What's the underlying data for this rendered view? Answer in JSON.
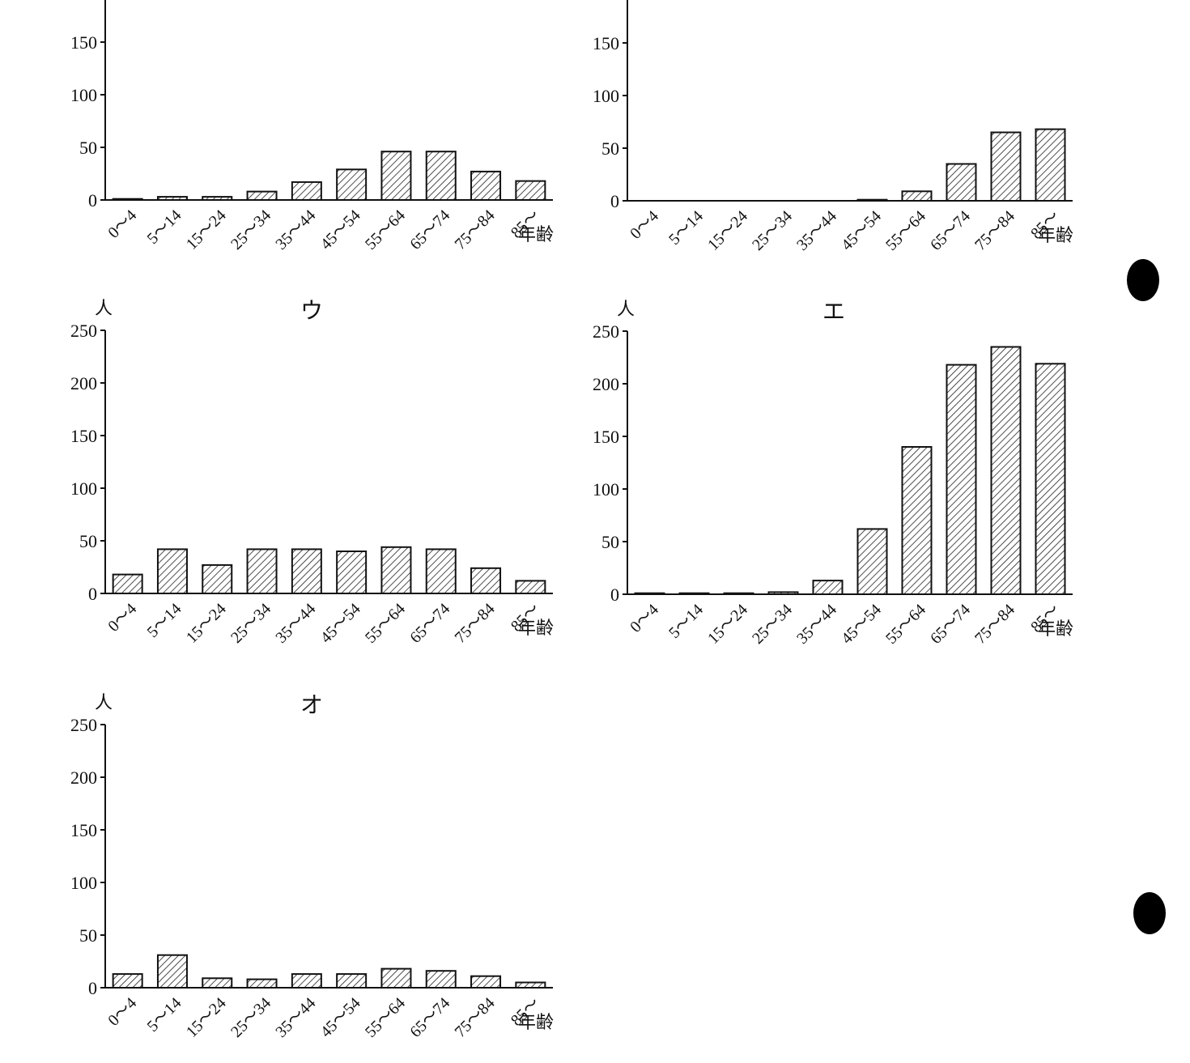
{
  "chart_data": [
    {
      "type": "bar",
      "xlabel": "年齢",
      "categories": [
        "0〜4",
        "5〜14",
        "15〜24",
        "25〜34",
        "35〜44",
        "45〜54",
        "55〜64",
        "65〜74",
        "75〜84",
        "85〜"
      ],
      "values": [
        1,
        3,
        3,
        8,
        17,
        29,
        46,
        46,
        27,
        18
      ],
      "ylim": [
        0,
        250
      ],
      "yticks": [
        0,
        50,
        100,
        150
      ]
    },
    {
      "type": "bar",
      "xlabel": "年齢",
      "categories": [
        "0〜4",
        "5〜14",
        "15〜24",
        "25〜34",
        "35〜44",
        "45〜54",
        "55〜64",
        "65〜74",
        "75〜84",
        "85〜"
      ],
      "values": [
        0,
        0,
        0,
        0,
        0,
        1,
        9,
        35,
        65,
        68
      ],
      "ylim": [
        0,
        250
      ],
      "yticks": [
        0,
        50,
        100,
        150
      ]
    },
    {
      "type": "bar",
      "title": "ウ",
      "ylabel": "人",
      "xlabel": "年齢",
      "categories": [
        "0〜4",
        "5〜14",
        "15〜24",
        "25〜34",
        "35〜44",
        "45〜54",
        "55〜64",
        "65〜74",
        "75〜84",
        "85〜"
      ],
      "values": [
        18,
        42,
        27,
        42,
        42,
        40,
        44,
        42,
        24,
        12
      ],
      "ylim": [
        0,
        250
      ],
      "yticks": [
        0,
        50,
        100,
        150,
        200,
        250
      ]
    },
    {
      "type": "bar",
      "title": "エ",
      "ylabel": "人",
      "xlabel": "年齢",
      "categories": [
        "0〜4",
        "5〜14",
        "15〜24",
        "25〜34",
        "35〜44",
        "45〜54",
        "55〜64",
        "65〜74",
        "75〜84",
        "85〜"
      ],
      "values": [
        1,
        1,
        1,
        2,
        13,
        62,
        140,
        218,
        235,
        219
      ],
      "ylim": [
        0,
        250
      ],
      "yticks": [
        0,
        50,
        100,
        150,
        200,
        250
      ]
    },
    {
      "type": "bar",
      "title": "オ",
      "ylabel": "人",
      "xlabel": "年齢",
      "categories": [
        "0〜4",
        "5〜14",
        "15〜24",
        "25〜34",
        "35〜44",
        "45〜54",
        "55〜64",
        "65〜74",
        "75〜84",
        "85〜"
      ],
      "values": [
        13,
        31,
        9,
        8,
        13,
        13,
        18,
        16,
        11,
        5
      ],
      "ylim": [
        0,
        250
      ],
      "yticks": [
        0,
        50,
        100,
        150,
        200,
        250
      ]
    }
  ]
}
